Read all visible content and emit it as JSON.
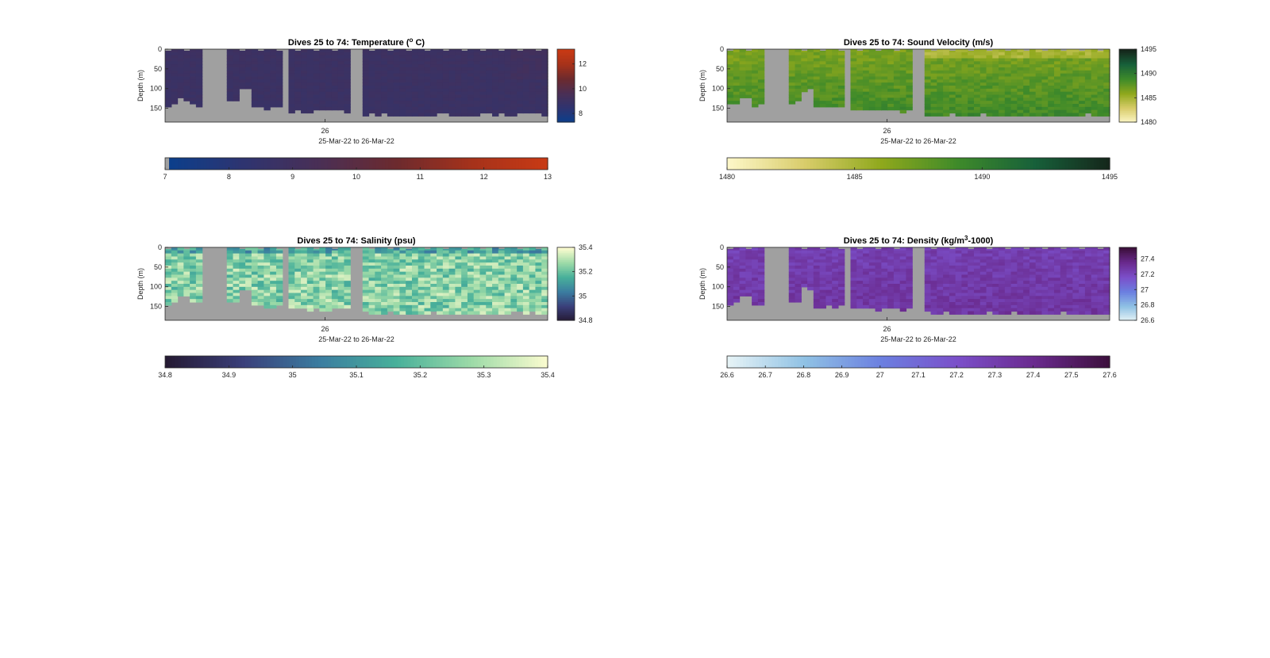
{
  "chart_data": [
    {
      "type": "heatmap",
      "title": "Dives 25 to 74: Temperature (",
      "title_sup": "o",
      "title_end": " C)",
      "ylabel": "Depth (m)",
      "xlabel": "25-Mar-22 to 26-Mar-22",
      "x_tick_labels": [
        "26"
      ],
      "y_tick_labels": [
        "0",
        "50",
        "100",
        "150"
      ],
      "ylim": [
        0,
        185
      ],
      "y_reversed": true,
      "colorbar_right": {
        "ticks": [
          "12",
          "10",
          "8"
        ],
        "range": [
          7.3,
          13.2
        ]
      },
      "colorbar_bottom": {
        "ticks": [
          "7",
          "8",
          "9",
          "10",
          "11",
          "12",
          "13"
        ],
        "range": [
          7,
          13
        ]
      },
      "colormap": [
        "#0a3f8c",
        "#2e3470",
        "#4a2f55",
        "#6c2a2e",
        "#a6321a",
        "#c93a14"
      ],
      "typical_value": 9.1,
      "missing_color": "#a0a0a0"
    },
    {
      "type": "heatmap",
      "title": "Dives 25 to 74: Sound Velocity (m/s)",
      "ylabel": "Depth (m)",
      "xlabel": "25-Mar-22 to 26-Mar-22",
      "x_tick_labels": [
        "26"
      ],
      "y_tick_labels": [
        "0",
        "50",
        "100",
        "150"
      ],
      "ylim": [
        0,
        185
      ],
      "y_reversed": true,
      "colorbar_right": {
        "ticks": [
          "1495",
          "1490",
          "1485",
          "1480"
        ],
        "range": [
          1480,
          1495
        ]
      },
      "colorbar_bottom": {
        "ticks": [
          "1480",
          "1485",
          "1490",
          "1495"
        ],
        "range": [
          1480,
          1495
        ]
      },
      "colormap": [
        "#fdf7c8",
        "#d8cc6a",
        "#8fa81c",
        "#3e8a2a",
        "#17603a",
        "#15251a"
      ],
      "typical_value": 1488.5,
      "missing_color": "#a0a0a0"
    },
    {
      "type": "heatmap",
      "title": "Dives 25 to 74: Salinity (psu)",
      "ylabel": "Depth (m)",
      "xlabel": "25-Mar-22 to 26-Mar-22",
      "x_tick_labels": [
        "26"
      ],
      "y_tick_labels": [
        "0",
        "50",
        "100",
        "150"
      ],
      "ylim": [
        0,
        185
      ],
      "y_reversed": true,
      "colorbar_right": {
        "ticks": [
          "35.4",
          "35.2",
          "35",
          "34.8"
        ],
        "range": [
          34.8,
          35.4
        ]
      },
      "colorbar_bottom": {
        "ticks": [
          "34.8",
          "34.9",
          "35",
          "35.1",
          "35.2",
          "35.3",
          "35.4"
        ],
        "range": [
          34.8,
          35.4
        ]
      },
      "colormap": [
        "#251a33",
        "#3a3f7a",
        "#3b7da0",
        "#48b09a",
        "#9edba8",
        "#fdfcd0"
      ],
      "typical_value": 35.25,
      "missing_color": "#a0a0a0"
    },
    {
      "type": "heatmap",
      "title": "Dives 25 to 74: Density (kg/m",
      "title_sup": "3",
      "title_end": "-1000)",
      "ylabel": "Depth (m)",
      "xlabel": "25-Mar-22 to 26-Mar-22",
      "x_tick_labels": [
        "26"
      ],
      "y_tick_labels": [
        "0",
        "50",
        "100",
        "150"
      ],
      "ylim": [
        0,
        185
      ],
      "y_reversed": true,
      "colorbar_right": {
        "ticks": [
          "27.4",
          "27.2",
          "27",
          "26.8",
          "26.6"
        ],
        "range": [
          26.6,
          27.55
        ]
      },
      "colorbar_bottom": {
        "ticks": [
          "26.6",
          "26.7",
          "26.8",
          "26.9",
          "27",
          "27.1",
          "27.2",
          "27.3",
          "27.4",
          "27.5",
          "27.6"
        ],
        "range": [
          26.6,
          27.6
        ]
      },
      "colormap": [
        "#e6f3f6",
        "#8fc1e4",
        "#6b7fe0",
        "#7b4fc9",
        "#6a2a8e",
        "#3b0f3a"
      ],
      "typical_value": 27.25,
      "missing_color": "#a0a0a0"
    }
  ]
}
